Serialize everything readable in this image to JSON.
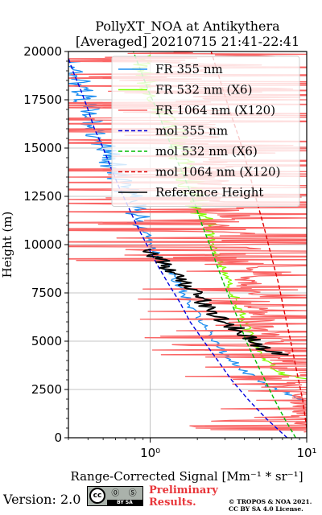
{
  "chart_data": {
    "type": "line",
    "title_line1": "PollyXT_NOA at Antikythera",
    "title_line2": "[Averaged] 20210715 21:41-22:41",
    "xlabel": "Range-Corrected Signal [Mm⁻¹ * sr⁻¹]",
    "ylabel": "Height (m)",
    "x_scale": "log",
    "xlim": [
      0.3,
      10
    ],
    "ylim": [
      0,
      20000
    ],
    "x_ticks": [
      1,
      10
    ],
    "x_tick_labels": [
      "10⁰",
      "10¹"
    ],
    "y_ticks": [
      0,
      2500,
      5000,
      7500,
      10000,
      12500,
      15000,
      17500,
      20000
    ],
    "y_tick_labels": [
      "0",
      "2500",
      "5000",
      "7500",
      "10000",
      "12500",
      "15000",
      "17500",
      "20000"
    ],
    "grid": true,
    "legend_position": "top-right",
    "series": [
      {
        "name": "FR 355 nm",
        "color": "#1f8ff0",
        "style": "solid",
        "noisy": true,
        "points": [
          [
            10,
            1900
          ],
          [
            6,
            2600
          ],
          [
            4,
            3400
          ],
          [
            3,
            4300
          ],
          [
            2.5,
            5200
          ],
          [
            2,
            6300
          ],
          [
            1.6,
            7600
          ],
          [
            1.3,
            8800
          ],
          [
            1.1,
            9600
          ],
          [
            0.95,
            10500
          ],
          [
            0.85,
            11300
          ],
          [
            0.75,
            12300
          ],
          [
            0.65,
            13300
          ],
          [
            0.57,
            14300
          ],
          [
            0.5,
            15200
          ],
          [
            0.45,
            16000
          ],
          [
            0.4,
            17000
          ],
          [
            0.36,
            18000
          ],
          [
            0.32,
            19000
          ],
          [
            0.3,
            19500
          ]
        ]
      },
      {
        "name": "FR 532 nm (X6)",
        "color": "#80ff00",
        "style": "solid",
        "noisy": true,
        "points": [
          [
            10,
            3000
          ],
          [
            7,
            3300
          ],
          [
            6,
            3700
          ],
          [
            5.2,
            4300
          ],
          [
            4.6,
            5000
          ],
          [
            4.2,
            5500
          ],
          [
            3.6,
            7000
          ],
          [
            3.0,
            8500
          ],
          [
            2.6,
            9800
          ],
          [
            2.3,
            11000
          ],
          [
            2.0,
            12300
          ],
          [
            1.8,
            13300
          ],
          [
            1.6,
            14500
          ],
          [
            1.4,
            15800
          ],
          [
            1.2,
            17000
          ],
          [
            1.0,
            18200
          ],
          [
            0.9,
            19200
          ],
          [
            0.85,
            19800
          ]
        ]
      },
      {
        "name": "FR 1064 nm (X120)",
        "color": "#fa6464",
        "style": "solid",
        "noisy": true,
        "points": [
          [
            10,
            300
          ],
          [
            9.5,
            2000
          ],
          [
            8,
            3000
          ],
          [
            7,
            4000
          ],
          [
            6,
            5000
          ],
          [
            5.2,
            6000
          ],
          [
            4.8,
            7000
          ],
          [
            4.3,
            8000
          ],
          [
            4,
            9000
          ],
          [
            3.5,
            10000
          ],
          [
            3,
            11500
          ],
          [
            2.6,
            13000
          ],
          [
            2.3,
            14500
          ],
          [
            2,
            16000
          ],
          [
            1.9,
            17500
          ],
          [
            1.8,
            19000
          ],
          [
            1.8,
            20000
          ]
        ]
      },
      {
        "name": "mol 355 nm",
        "color": "#0000dd",
        "style": "dashed",
        "points": [
          [
            7.5,
            0
          ],
          [
            5.5,
            1000
          ],
          [
            4.2,
            2000
          ],
          [
            3.3,
            3000
          ],
          [
            2.7,
            4000
          ],
          [
            2.2,
            5000
          ],
          [
            1.8,
            6000
          ],
          [
            1.55,
            7000
          ],
          [
            1.3,
            8000
          ],
          [
            1.1,
            9000
          ],
          [
            0.95,
            10000
          ],
          [
            0.82,
            11000
          ],
          [
            0.72,
            12000
          ],
          [
            0.63,
            13000
          ],
          [
            0.56,
            14000
          ],
          [
            0.5,
            15000
          ],
          [
            0.44,
            16000
          ],
          [
            0.4,
            17000
          ],
          [
            0.36,
            18000
          ],
          [
            0.32,
            19000
          ],
          [
            0.29,
            20000
          ]
        ]
      },
      {
        "name": "mol 532 nm (X6)",
        "color": "#00bb00",
        "style": "dashed",
        "points": [
          [
            8.5,
            0
          ],
          [
            7.2,
            1000
          ],
          [
            6.2,
            2000
          ],
          [
            5.4,
            3000
          ],
          [
            4.7,
            4000
          ],
          [
            4.1,
            5000
          ],
          [
            3.7,
            6000
          ],
          [
            3.3,
            7000
          ],
          [
            2.95,
            8000
          ],
          [
            2.65,
            9000
          ],
          [
            2.4,
            10000
          ],
          [
            2.15,
            11000
          ],
          [
            1.95,
            12000
          ],
          [
            1.75,
            13000
          ],
          [
            1.55,
            14000
          ],
          [
            1.38,
            15000
          ],
          [
            1.23,
            16000
          ],
          [
            1.1,
            17000
          ],
          [
            0.97,
            18000
          ],
          [
            0.87,
            19000
          ],
          [
            0.78,
            20000
          ]
        ]
      },
      {
        "name": "mol 1064 nm (X120)",
        "color": "#dd0000",
        "style": "dashed",
        "points": [
          [
            10,
            500
          ],
          [
            9.4,
            2000
          ],
          [
            8.6,
            3500
          ],
          [
            7.9,
            5000
          ],
          [
            7.2,
            6500
          ],
          [
            6.6,
            8000
          ],
          [
            5.9,
            9500
          ],
          [
            5.3,
            11000
          ],
          [
            4.7,
            12500
          ],
          [
            4.2,
            14000
          ],
          [
            3.7,
            15500
          ],
          [
            3.2,
            17000
          ],
          [
            2.8,
            18500
          ],
          [
            2.45,
            20000
          ]
        ]
      },
      {
        "name": "Reference Height",
        "color": "#000000",
        "style": "solid",
        "noisy": true,
        "points": [
          [
            0.95,
            9800
          ],
          [
            1.3,
            8800
          ],
          [
            1.7,
            8000
          ],
          [
            2.2,
            7000
          ],
          [
            2.8,
            6200
          ],
          [
            3.6,
            5600
          ],
          [
            4.2,
            5200
          ],
          [
            5.6,
            4500
          ],
          [
            7.2,
            4300
          ]
        ]
      }
    ]
  },
  "footer": {
    "version": "Version: 2.0",
    "cc_badge": {
      "cc": "cc",
      "icons": "⓪ Ⓢ",
      "strip": "BY    SA"
    },
    "preliminary_line1": "Preliminary",
    "preliminary_line2": "Results.",
    "copyright_line1": "© TROPOS & NOA 2021.",
    "copyright_line2": "CC BY SA 4.0 License."
  }
}
